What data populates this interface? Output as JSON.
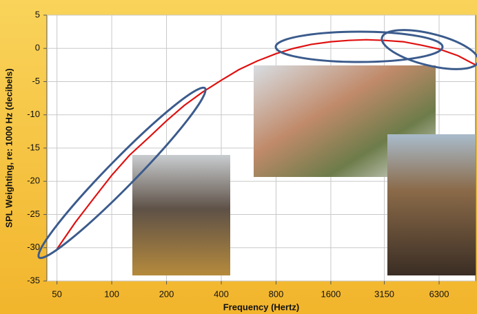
{
  "chart_data": {
    "type": "line",
    "x_label": "Frequency (Hertz)",
    "y_label": "SPL Weighting, re: 1000 Hz (decibels)",
    "log_x": true,
    "grid": true,
    "xlim": [
      44,
      10000
    ],
    "xticks": [
      50,
      100,
      200,
      400,
      800,
      1600,
      3150,
      6300
    ],
    "ylim": [
      -35,
      5
    ],
    "yticks": [
      -35,
      -30,
      -25,
      -20,
      -15,
      -10,
      -5,
      0,
      5
    ],
    "x": [
      50,
      63,
      80,
      100,
      125,
      160,
      200,
      250,
      315,
      400,
      500,
      630,
      800,
      1000,
      1250,
      1600,
      2000,
      2500,
      3150,
      4000,
      5000,
      6300,
      8000,
      10000
    ],
    "series": [
      {
        "color": "#e01010",
        "values": [
          -30.2,
          -26.2,
          -22.5,
          -19.1,
          -16.1,
          -13.4,
          -10.9,
          -8.6,
          -6.6,
          -4.8,
          -3.2,
          -1.9,
          -0.8,
          0,
          0.6,
          1.0,
          1.2,
          1.3,
          1.2,
          1.0,
          0.5,
          -0.1,
          -1.1,
          -2.5
        ]
      }
    ]
  }
}
